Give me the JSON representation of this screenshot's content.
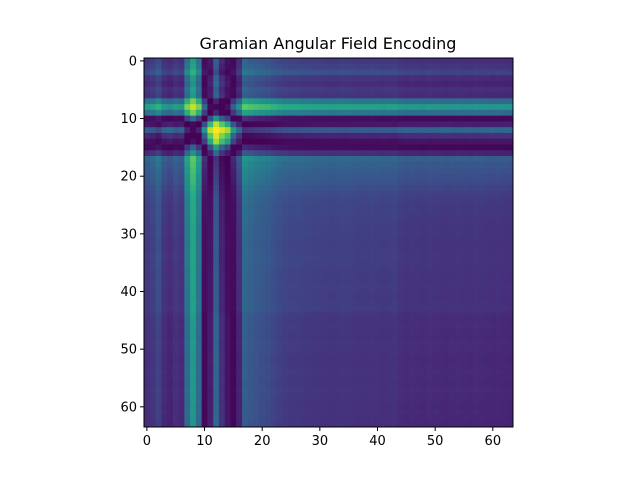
{
  "chart_data": {
    "type": "heatmap",
    "title": "Gramian Angular Field Encoding",
    "xlabel": "",
    "ylabel": "",
    "size": 64,
    "xlim": [
      -0.5,
      63.5
    ],
    "ylim": [
      63.5,
      -0.5
    ],
    "xticks": [
      0,
      10,
      20,
      30,
      40,
      50,
      60
    ],
    "yticks": [
      0,
      10,
      20,
      30,
      40,
      50,
      60
    ],
    "xtick_labels": [
      "0",
      "10",
      "20",
      "30",
      "40",
      "50",
      "60"
    ],
    "ytick_labels": [
      "0",
      "10",
      "20",
      "30",
      "40",
      "50",
      "60"
    ],
    "colormap": "viridis",
    "value_range": [
      -1,
      1
    ],
    "grid": false,
    "encoding": "GASF: value[i][j] = cos(phi_i + phi_j), phi_t = arccos(series[t])",
    "series": [
      0.4,
      0.45,
      0.55,
      0.36,
      0.3,
      0.4,
      0.35,
      0.8,
      0.96,
      0.8,
      -0.05,
      -0.82,
      -1.0,
      -0.9,
      -0.75,
      -0.1,
      0.3,
      0.72,
      0.68,
      0.65,
      0.62,
      0.6,
      0.56,
      0.52,
      0.5,
      0.48,
      0.48,
      0.47,
      0.46,
      0.45,
      0.45,
      0.44,
      0.43,
      0.44,
      0.45,
      0.44,
      0.43,
      0.42,
      0.42,
      0.43,
      0.42,
      0.41,
      0.42,
      0.43,
      0.38,
      0.36,
      0.37,
      0.36,
      0.35,
      0.37,
      0.36,
      0.35,
      0.34,
      0.35,
      0.36,
      0.35,
      0.34,
      0.36,
      0.35,
      0.34,
      0.33,
      0.34,
      0.33,
      0.32
    ]
  }
}
